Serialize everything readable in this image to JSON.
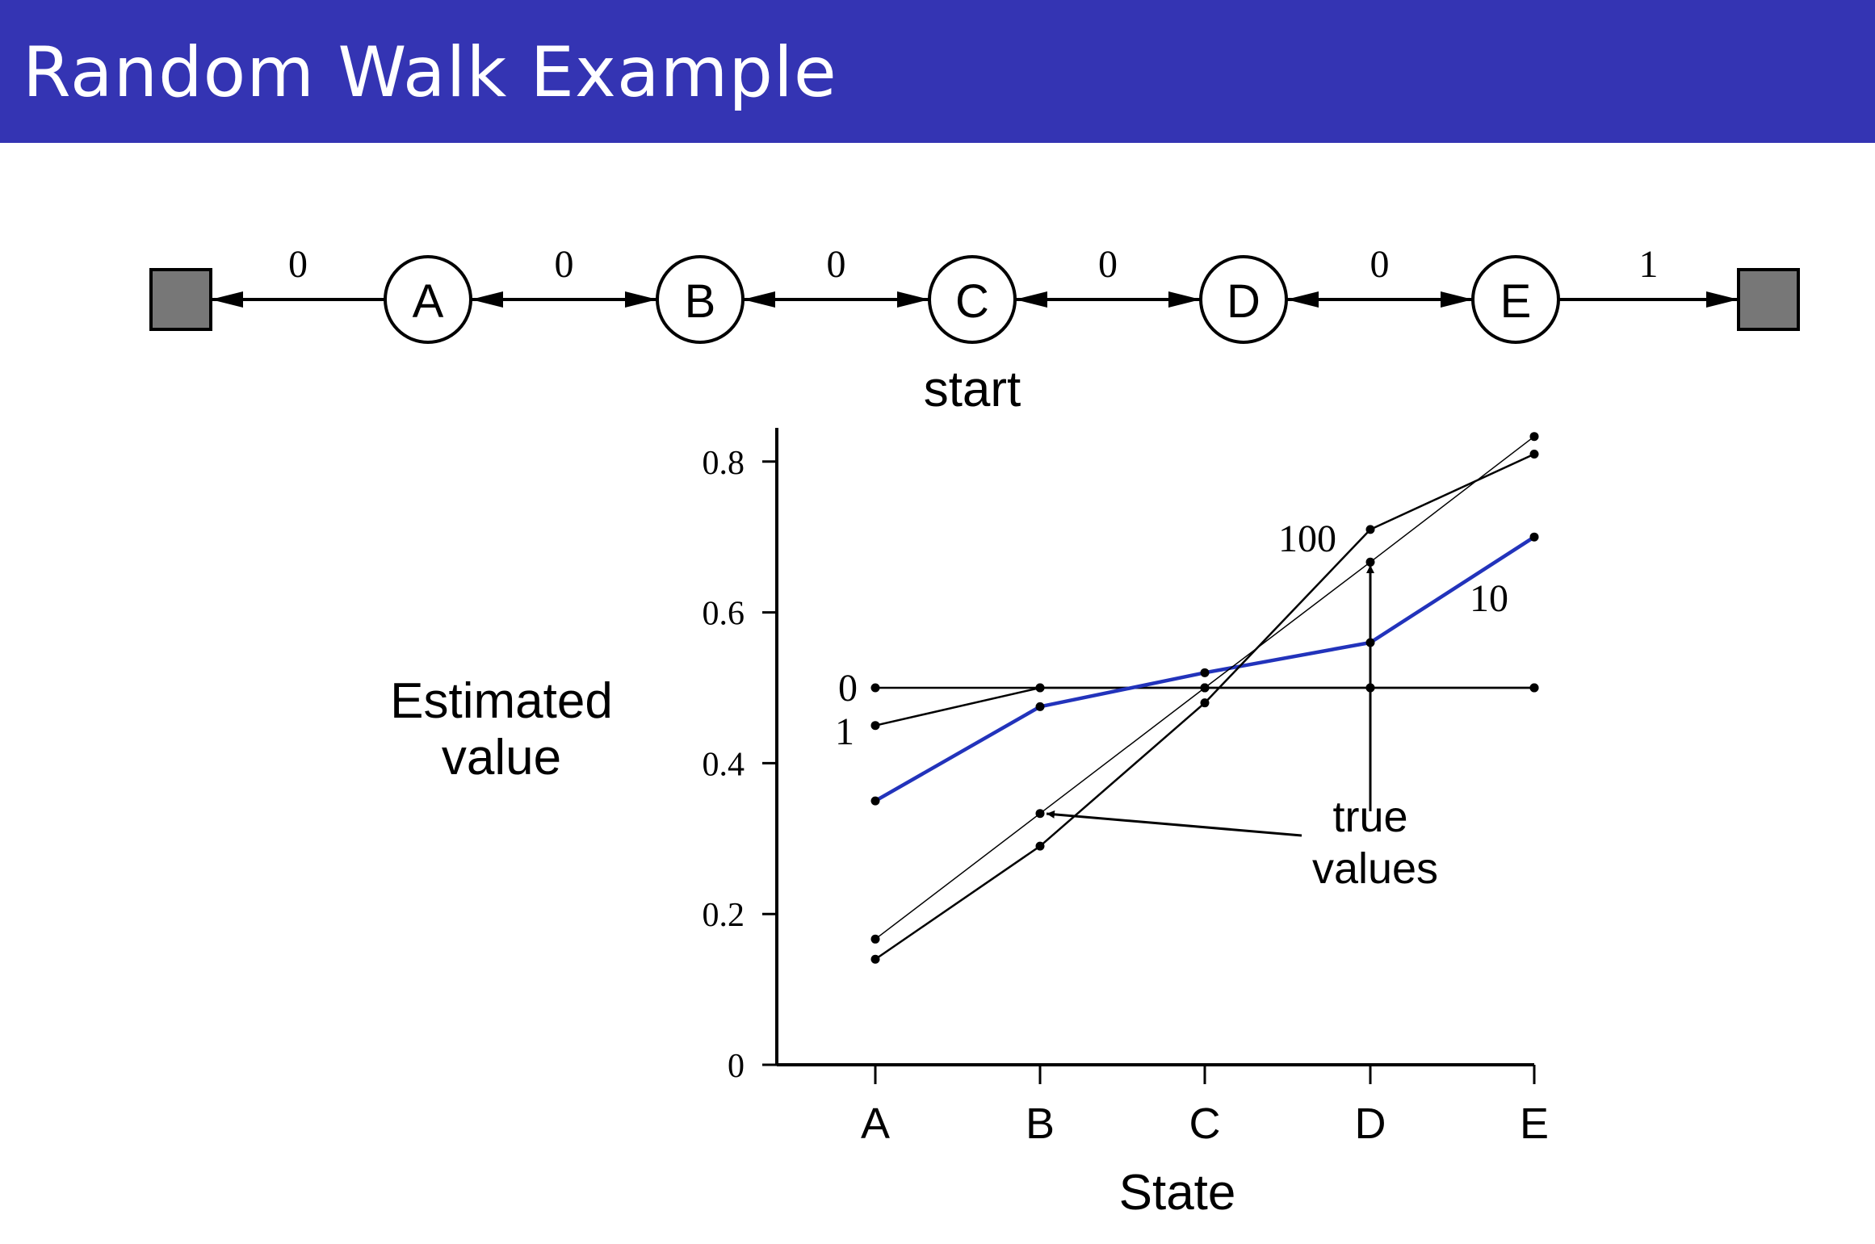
{
  "slide": {
    "title": "Random Walk Example"
  },
  "walk": {
    "states": [
      "A",
      "B",
      "C",
      "D",
      "E"
    ],
    "rewards": [
      "0",
      "0",
      "0",
      "0",
      "0",
      "1"
    ],
    "start_label": "start"
  },
  "chart_data": {
    "type": "line",
    "xlabel": "State",
    "ylabel": "Estimated value",
    "categories": [
      "A",
      "B",
      "C",
      "D",
      "E"
    ],
    "yticks": [
      "0",
      "0.2",
      "0.4",
      "0.6",
      "0.8"
    ],
    "ylim": [
      0,
      0.84
    ],
    "series": [
      {
        "name": "0",
        "values": [
          0.5,
          0.5,
          0.5,
          0.5,
          0.5
        ]
      },
      {
        "name": "1",
        "values": [
          0.45,
          0.5,
          0.5,
          0.5,
          0.5
        ]
      },
      {
        "name": "10",
        "values": [
          0.35,
          0.475,
          0.52,
          0.56,
          0.7
        ],
        "color": "#2233bb"
      },
      {
        "name": "100",
        "values": [
          0.14,
          0.29,
          0.48,
          0.71,
          0.81
        ]
      },
      {
        "name": "true values",
        "values": [
          0.1667,
          0.3333,
          0.5,
          0.6667,
          0.8333
        ]
      }
    ],
    "annotation": "true values"
  }
}
